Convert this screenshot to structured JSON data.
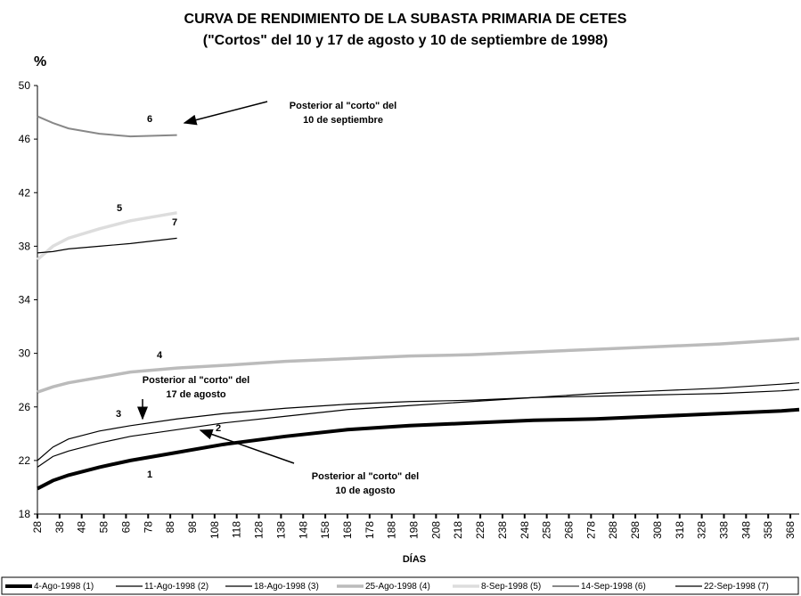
{
  "chart_data": {
    "type": "line",
    "title": [
      "CURVA DE RENDIMIENTO DE LA SUBASTA PRIMARIA DE CETES",
      "(\"Cortos\" del 10 y 17 de agosto y 10 de septiembre de 1998)"
    ],
    "ylabel": "%",
    "xlabel": "DÍAS",
    "x": [
      28,
      35,
      42,
      56,
      70,
      91,
      112,
      140,
      168,
      196,
      224,
      252,
      280,
      308,
      336,
      364,
      372
    ],
    "xlim": [
      28,
      372
    ],
    "xticks": [
      28,
      38,
      48,
      58,
      68,
      78,
      88,
      98,
      108,
      118,
      128,
      138,
      148,
      158,
      168,
      178,
      188,
      198,
      208,
      218,
      228,
      238,
      248,
      258,
      268,
      278,
      288,
      298,
      308,
      318,
      328,
      338,
      348,
      358,
      368
    ],
    "ylim": [
      18,
      50
    ],
    "yticks": [
      18,
      22,
      26,
      30,
      34,
      38,
      42,
      46,
      50
    ],
    "series": [
      {
        "name": "4-Ago-1998 (1)",
        "color": "#000000",
        "values": [
          19.9,
          20.5,
          20.9,
          21.5,
          22.0,
          22.6,
          23.2,
          23.8,
          24.3,
          24.6,
          24.8,
          25.0,
          25.1,
          25.3,
          25.5,
          25.7,
          25.8
        ]
      },
      {
        "name": "11-Ago-1998 (2)",
        "color": "#000000",
        "values": [
          21.5,
          22.3,
          22.7,
          23.3,
          23.8,
          24.3,
          24.8,
          25.3,
          25.8,
          26.1,
          26.4,
          26.7,
          27.0,
          27.2,
          27.4,
          27.7,
          27.8
        ]
      },
      {
        "name": "18-Ago-1998 (3)",
        "color": "#000000",
        "values": [
          22.0,
          23.0,
          23.6,
          24.2,
          24.6,
          25.1,
          25.5,
          25.9,
          26.2,
          26.4,
          26.5,
          26.7,
          26.8,
          26.9,
          27.0,
          27.2,
          27.3
        ]
      },
      {
        "name": "25-Ago-1998 (4)",
        "color": "#bbbbbb",
        "values": [
          27.1,
          27.5,
          27.8,
          28.2,
          28.6,
          28.9,
          29.1,
          29.4,
          29.6,
          29.8,
          29.9,
          30.1,
          30.3,
          30.5,
          30.7,
          31.0,
          31.1
        ]
      },
      {
        "name": "8-Sep-1998 (5)",
        "color": "#dddddd",
        "values": [
          37.0,
          38.0,
          38.6,
          39.3,
          39.9,
          40.5,
          null,
          null,
          null,
          null,
          null,
          null,
          null,
          null,
          null,
          null,
          null
        ]
      },
      {
        "name": "14-Sep-1998 (6)",
        "color": "#888888",
        "values": [
          47.7,
          47.2,
          46.8,
          46.4,
          46.2,
          46.3,
          null,
          null,
          null,
          null,
          null,
          null,
          null,
          null,
          null,
          null,
          null
        ]
      },
      {
        "name": "22-Sep-1998 (7)",
        "color": "#000000",
        "values": [
          37.5,
          37.6,
          37.8,
          38.0,
          38.2,
          38.6,
          null,
          null,
          null,
          null,
          null,
          null,
          null,
          null,
          null,
          null,
          null
        ]
      }
    ],
    "curve_labels": [
      "1",
      "2",
      "3",
      "4",
      "5",
      "6",
      "7"
    ],
    "annotations": [
      [
        "Posterior al \"corto\" del",
        "10 de septiembre"
      ],
      [
        "Posterior al \"corto\" del",
        "17 de agosto"
      ],
      [
        "Posterior al \"corto\" del",
        "10 de agosto"
      ]
    ]
  }
}
